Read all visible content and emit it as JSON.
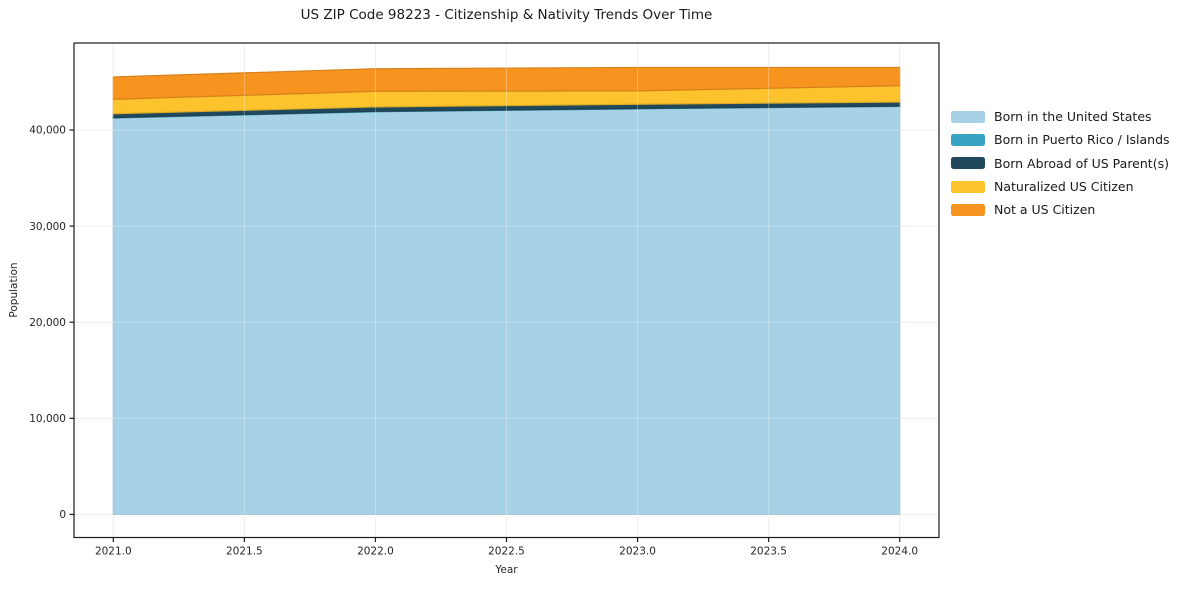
{
  "chart_data": {
    "type": "area",
    "stacked": true,
    "title": "US ZIP Code 98223 - Citizenship & Nativity Trends Over Time",
    "xlabel": "Year",
    "ylabel": "Population",
    "x": [
      2021,
      2022,
      2023,
      2024
    ],
    "series": [
      {
        "name": "Born in the United States",
        "color": "#a6d1e6",
        "values": [
          41250,
          41900,
          42200,
          42450
        ]
      },
      {
        "name": "Born in Puerto Rico / Islands",
        "color": "#38a3c3",
        "values": [
          40,
          40,
          40,
          40
        ]
      },
      {
        "name": "Born Abroad of US Parent(s)",
        "color": "#21495c",
        "values": [
          400,
          460,
          440,
          420
        ]
      },
      {
        "name": "Naturalized US Citizen",
        "color": "#fcc32d",
        "values": [
          1500,
          1630,
          1390,
          1700
        ]
      },
      {
        "name": "Not a US Citizen",
        "color": "#f79420",
        "values": [
          2330,
          2340,
          2440,
          1900
        ]
      }
    ],
    "xlim": [
      2020.85,
      2024.15
    ],
    "ylim": [
      -2400,
      49050
    ],
    "x_ticks": {
      "values": [
        2021.0,
        2021.5,
        2022.0,
        2022.5,
        2023.0,
        2023.5,
        2024.0
      ],
      "labels": [
        "2021.0",
        "2021.5",
        "2022.0",
        "2022.5",
        "2023.0",
        "2023.5",
        "2024.0"
      ]
    },
    "y_ticks": {
      "values": [
        0,
        10000,
        20000,
        30000,
        40000
      ],
      "labels": [
        "0",
        "10,000",
        "20,000",
        "30,000",
        "40,000"
      ]
    },
    "grid": true,
    "legend_position": "right of plot, top aligned"
  },
  "colors": {
    "background": "#ffffff",
    "gridline": "#e8e8e8",
    "spine": "#1a1a1a",
    "tick_text": "#262626"
  }
}
